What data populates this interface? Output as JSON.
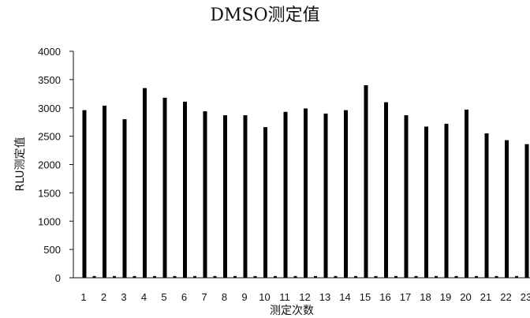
{
  "chart_data": {
    "type": "bar",
    "title": "DMSO测定值",
    "xlabel": "测定次数",
    "ylabel": "RLU测定值",
    "ylim": [
      0,
      4000
    ],
    "yticks": [
      0,
      500,
      1000,
      1500,
      2000,
      2500,
      3000,
      3500,
      4000
    ],
    "grid": false,
    "legend": "none",
    "categories": [
      "1",
      "2",
      "3",
      "4",
      "5",
      "6",
      "7",
      "8",
      "9",
      "10",
      "11",
      "12",
      "13",
      "14",
      "15",
      "16",
      "17",
      "18",
      "19",
      "20",
      "21",
      "22",
      "23"
    ],
    "series": [
      {
        "values": [
          2960,
          3040,
          2800,
          3350,
          3180,
          3110,
          2940,
          2870,
          2870,
          2660,
          2930,
          2990,
          2900,
          2960,
          3400,
          3100,
          2870,
          2670,
          2720,
          2970,
          2550,
          2430,
          2360
        ]
      },
      {
        "values": [
          30,
          30,
          30,
          30,
          30,
          30,
          30,
          30,
          30,
          30,
          30,
          30,
          30,
          30,
          30,
          30,
          30,
          30,
          30,
          30,
          30,
          30,
          30
        ]
      }
    ],
    "colors": {
      "bars": "#000000",
      "axis": "#111111"
    }
  }
}
